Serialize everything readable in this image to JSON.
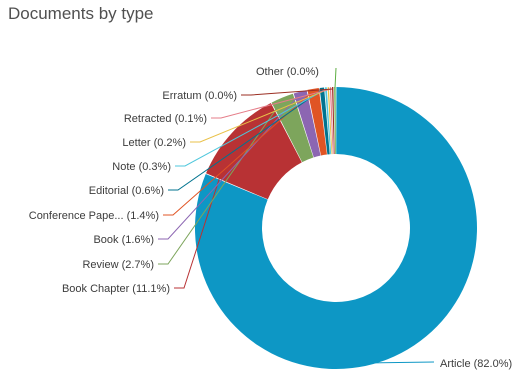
{
  "chart_data": {
    "type": "pie",
    "title": "Documents by type",
    "slices": [
      {
        "label": "Article (82.0%)",
        "value": 82.0,
        "color": "#0d97c5"
      },
      {
        "label": "Book Chapter (11.1%)",
        "value": 11.1,
        "color": "#b83234"
      },
      {
        "label": "Review (2.7%)",
        "value": 2.7,
        "color": "#7da55c"
      },
      {
        "label": "Book (1.6%)",
        "value": 1.6,
        "color": "#8c66b2"
      },
      {
        "label": "Conference Pape... (1.4%)",
        "value": 1.4,
        "color": "#e05424"
      },
      {
        "label": "Editorial (0.6%)",
        "value": 0.6,
        "color": "#00738f"
      },
      {
        "label": "Note (0.3%)",
        "value": 0.3,
        "color": "#4fc7dc"
      },
      {
        "label": "Letter (0.2%)",
        "value": 0.2,
        "color": "#e9c148"
      },
      {
        "label": "Retracted (0.1%)",
        "value": 0.1,
        "color": "#e57c88"
      },
      {
        "label": "Erratum (0.0%)",
        "value": 0.0,
        "color": "#9b2e22"
      },
      {
        "label": "Other (0.0%)",
        "value": 0.0,
        "color": "#5cae41"
      }
    ]
  }
}
